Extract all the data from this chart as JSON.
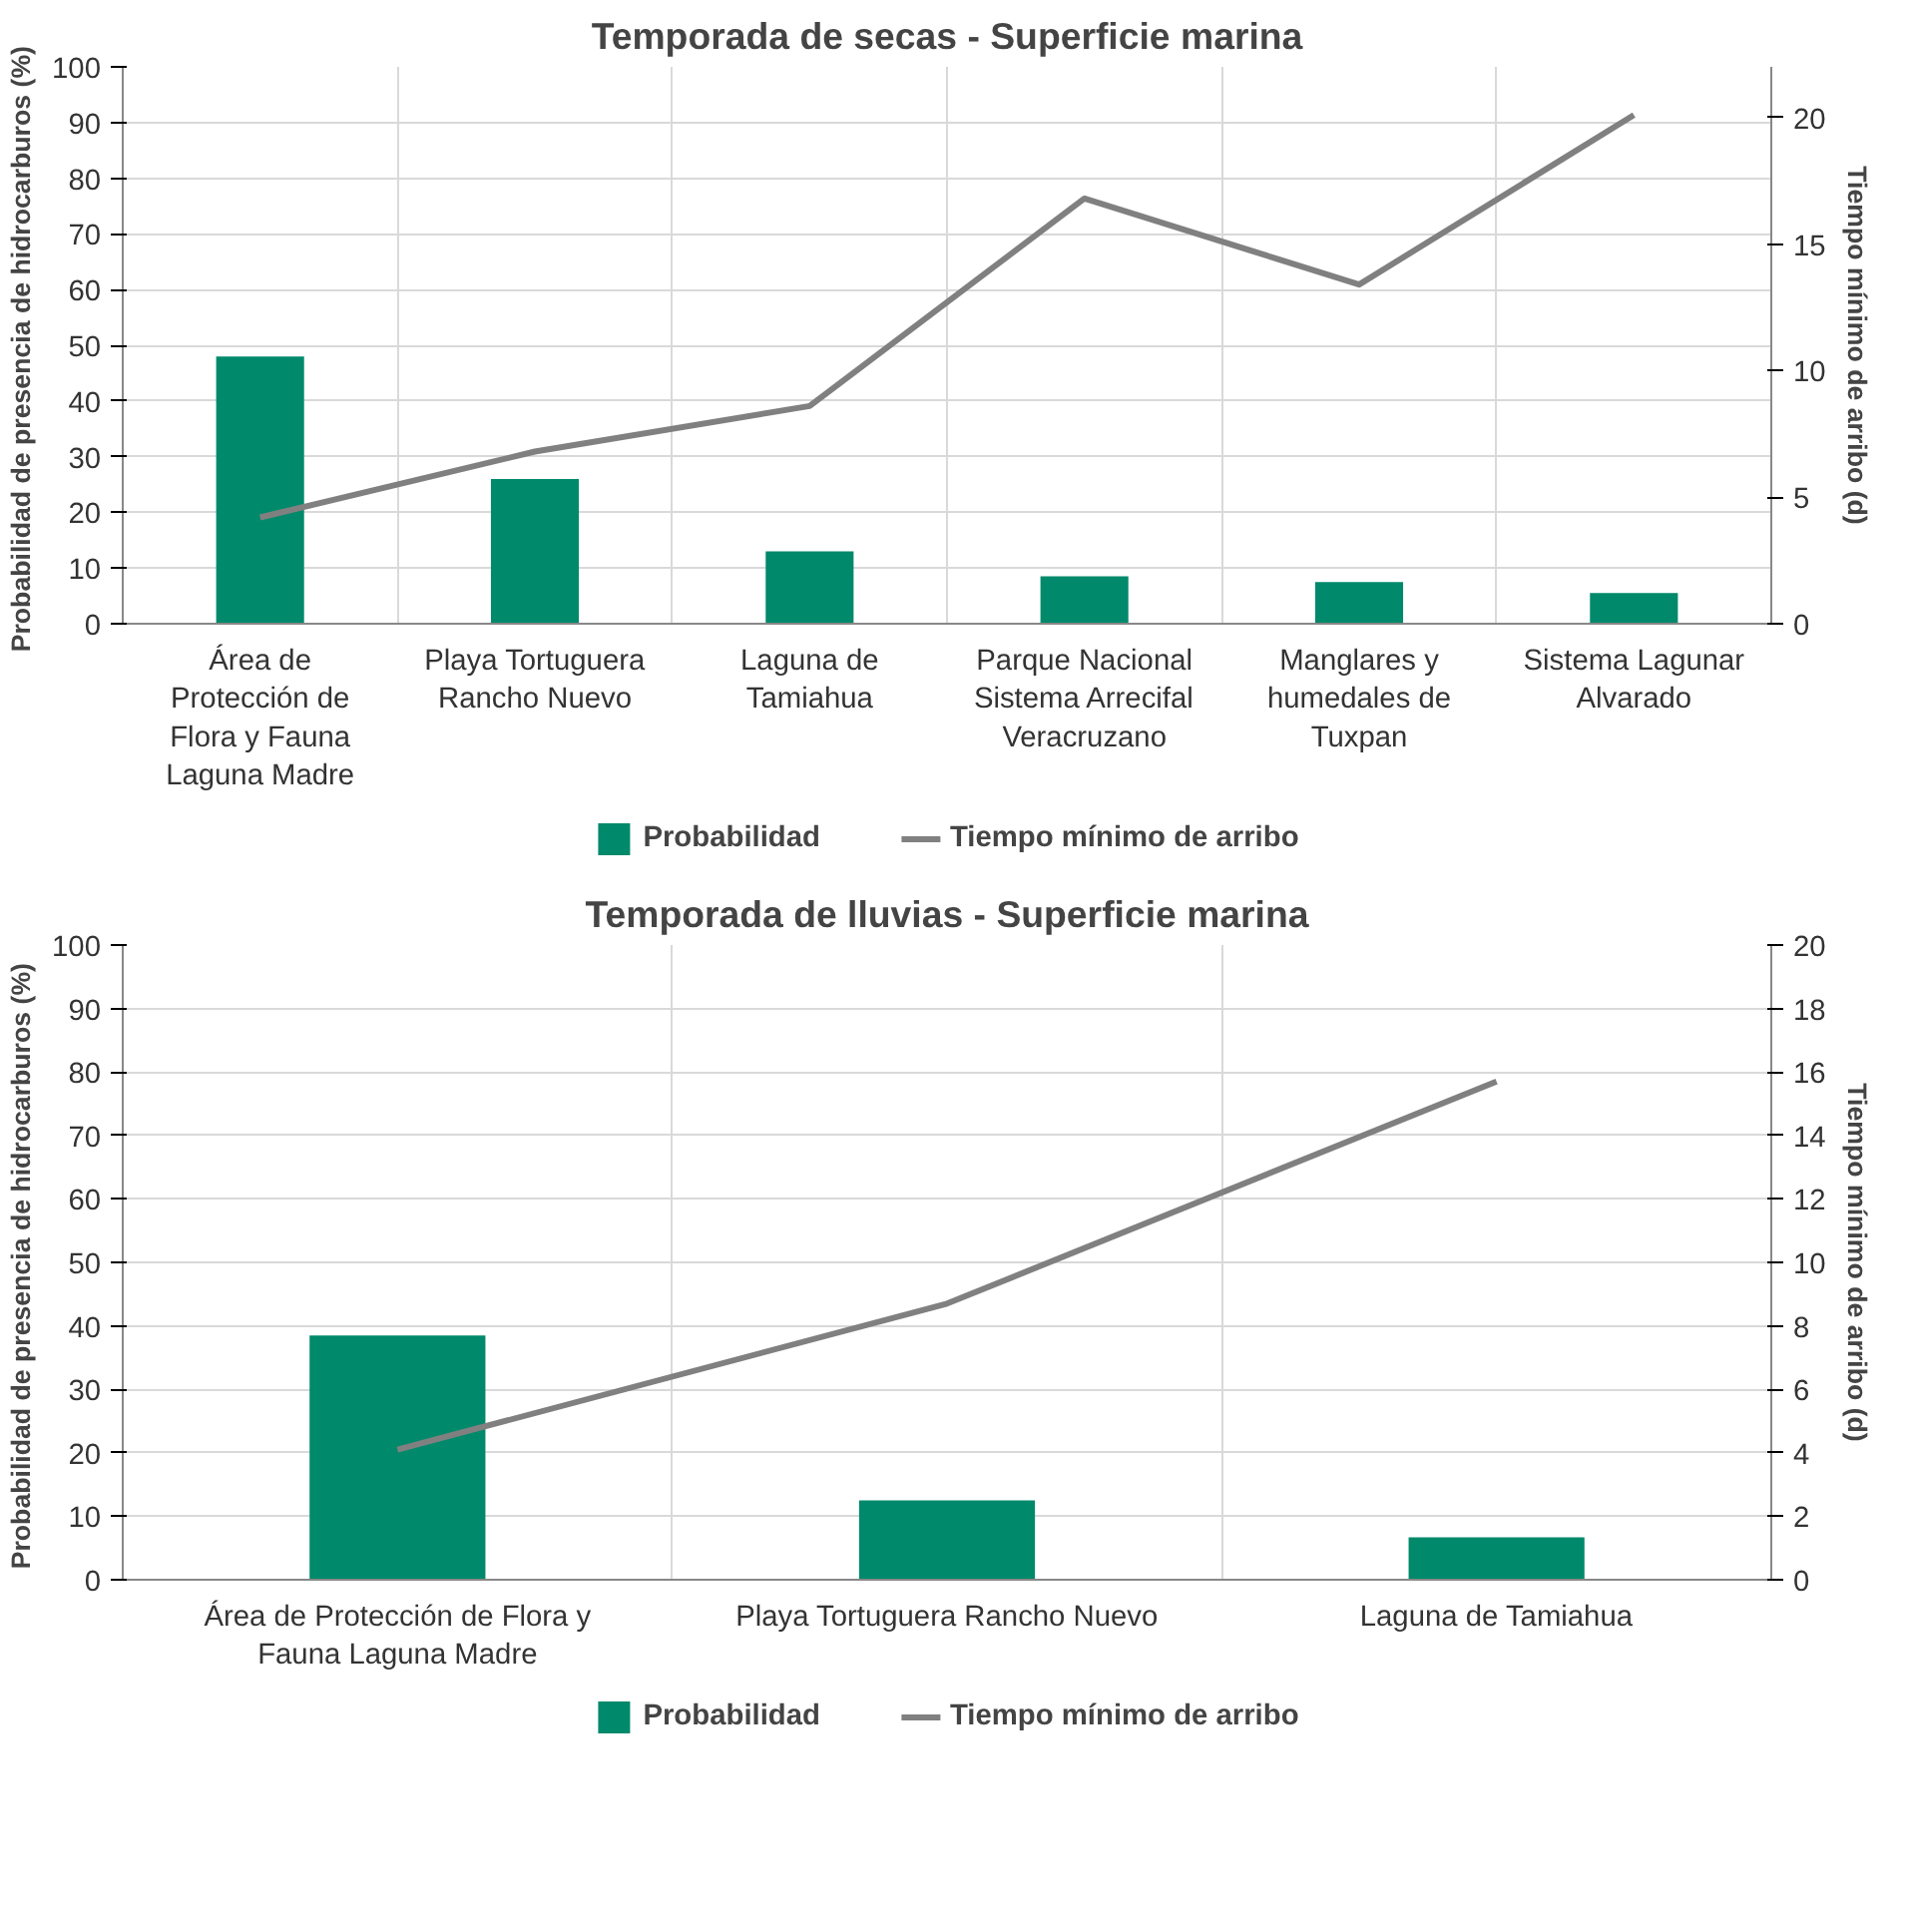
{
  "chart_data": [
    {
      "type": "bar",
      "title": "Temporada de secas - Superficie marina",
      "ylabel": "Probabilidad de presencia de hidrocarburos  (%)",
      "y2label": "Tiempo mínimo de arribo (d)",
      "categories": [
        "Área de Protección de Flora y Fauna Laguna Madre",
        "Playa Tortuguera Rancho Nuevo",
        "Laguna de Tamiahua",
        "Parque Nacional Sistema Arrecifal Veracruzano",
        "Manglares y humedales de Tuxpan",
        "Sistema Lagunar Alvarado"
      ],
      "series": [
        {
          "name": "Probabilidad",
          "color": "#00896b",
          "values": [
            48,
            26,
            13,
            8.5,
            7.5,
            5.5
          ]
        },
        {
          "name": "Tiempo mínimo de arribo",
          "type": "line",
          "axis": "y2",
          "color": "#808080",
          "values": [
            4.2,
            6.8,
            8.6,
            16.8,
            13.4,
            20.1
          ]
        }
      ],
      "ylim": [
        0,
        100
      ],
      "yticks": [
        0,
        10,
        20,
        30,
        40,
        50,
        60,
        70,
        80,
        90,
        100
      ],
      "y2lim": [
        0,
        22
      ],
      "y2ticks": [
        0,
        5,
        10,
        15,
        20
      ],
      "grid": true,
      "legend": "bottom"
    },
    {
      "type": "bar",
      "title": "Temporada de lluvias - Superficie marina",
      "ylabel": "Probabilidad de presencia de hidrocarburos  (%)",
      "y2label": "Tiempo mínimo de arribo (d)",
      "categories": [
        "Área de Protección de Flora y Fauna Laguna Madre",
        "Playa Tortuguera Rancho Nuevo",
        "Laguna de Tamiahua"
      ],
      "series": [
        {
          "name": "Probabilidad",
          "color": "#00896b",
          "values": [
            38.5,
            12.5,
            6.7
          ]
        },
        {
          "name": "Tiempo mínimo de arribo",
          "type": "line",
          "axis": "y2",
          "color": "#808080",
          "values": [
            4.1,
            8.7,
            15.7
          ]
        }
      ],
      "ylim": [
        0,
        100
      ],
      "yticks": [
        0,
        10,
        20,
        30,
        40,
        50,
        60,
        70,
        80,
        90,
        100
      ],
      "y2lim": [
        0,
        20
      ],
      "y2ticks": [
        0,
        2,
        4,
        6,
        8,
        10,
        12,
        14,
        16,
        18,
        20
      ],
      "grid": true,
      "legend": "bottom"
    }
  ]
}
